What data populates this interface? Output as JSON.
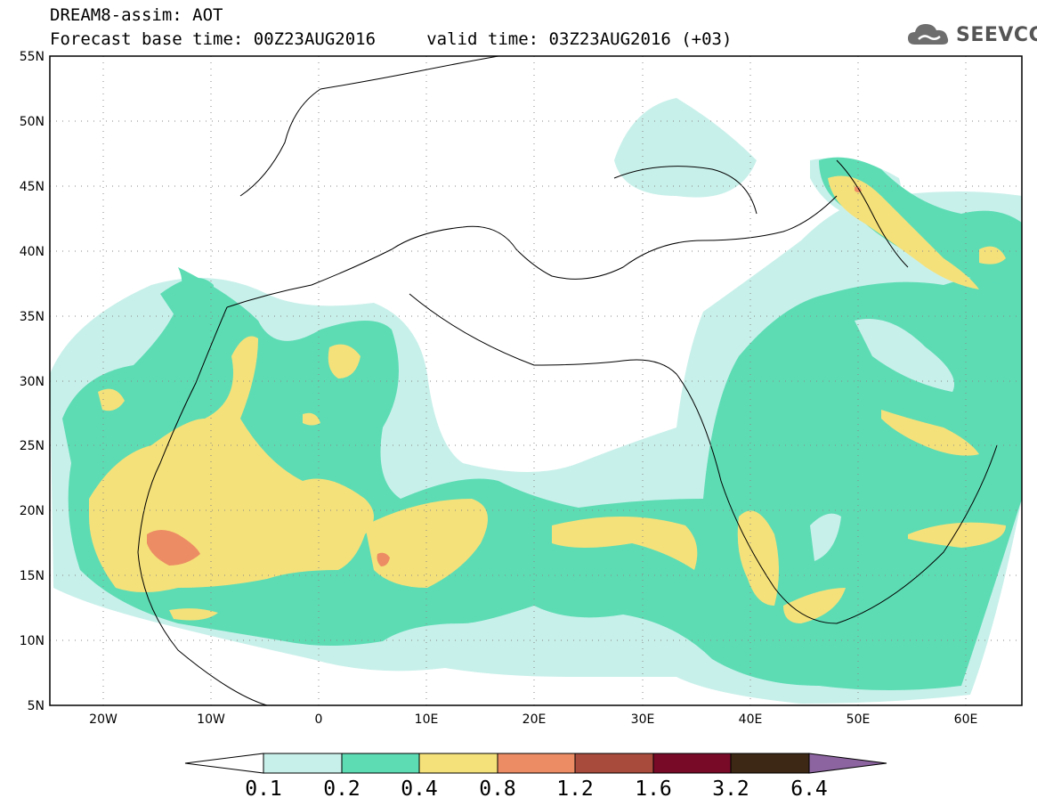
{
  "header": {
    "line1": "DREAM8-assim: AOT",
    "line2": "Forecast base time: 00Z23AUG2016     valid time: 03Z23AUG2016 (+03)"
  },
  "logo": {
    "text": "SEEVCCC",
    "icon": "cloud-icon",
    "color": "#555555"
  },
  "map": {
    "lat_ticks": [
      "55N",
      "50N",
      "45N",
      "40N",
      "35N",
      "30N",
      "25N",
      "20N",
      "15N",
      "10N",
      "5N"
    ],
    "lon_ticks": [
      "20W",
      "10W",
      "0",
      "10E",
      "20E",
      "30E",
      "40E",
      "50E",
      "60E"
    ],
    "lon_range": [
      -25,
      65
    ],
    "lat_range": [
      5,
      55
    ],
    "grid": "dotted"
  },
  "colorbar": {
    "labels": [
      "0.1",
      "0.2",
      "0.4",
      "0.8",
      "1.2",
      "1.6",
      "3.2",
      "6.4"
    ],
    "colors": [
      "#ffffff",
      "#c8f0ea",
      "#5ddcb4",
      "#f5e17a",
      "#ec8c64",
      "#a84a3c",
      "#780a28",
      "#3c2814",
      "#8c64a0"
    ]
  },
  "legend": {
    "level_colors": {
      "0.1-0.2": "#c8f0ea",
      "0.2-0.4": "#5ddcb4",
      "0.4-0.8": "#f5e17a",
      "0.8-1.2": "#ec8c64"
    }
  }
}
